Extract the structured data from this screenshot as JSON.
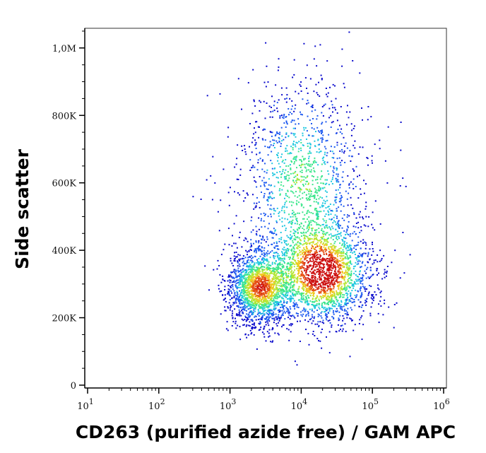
{
  "chart_data": {
    "type": "scatter",
    "style": "density dot plot (flow cytometry)",
    "title": "",
    "xlabel": "CD263 (purified azide free) / GAM APC",
    "ylabel": "Side scatter",
    "x_scale": "log",
    "xlim": [
      10,
      1000000
    ],
    "ylim": [
      0,
      1050000
    ],
    "grid": false,
    "x_ticks": [
      {
        "value": 10,
        "base": "10",
        "exp": "1"
      },
      {
        "value": 100,
        "base": "10",
        "exp": "2"
      },
      {
        "value": 1000,
        "base": "10",
        "exp": "3"
      },
      {
        "value": 10000,
        "base": "10",
        "exp": "4"
      },
      {
        "value": 100000,
        "base": "10",
        "exp": "5"
      },
      {
        "value": 1000000,
        "base": "10",
        "exp": "6"
      }
    ],
    "y_ticks": [
      {
        "value": 0,
        "label": "0"
      },
      {
        "value": 200000,
        "label": "200K"
      },
      {
        "value": 400000,
        "label": "400K"
      },
      {
        "value": 600000,
        "label": "600K"
      },
      {
        "value": 800000,
        "label": "800K"
      },
      {
        "value": 1000000,
        "label": "1,0M"
      }
    ],
    "density_colors": [
      "#0a0acc",
      "#1e5af0",
      "#20c8e0",
      "#3ce68c",
      "#b4e632",
      "#f0c81e",
      "#e65014",
      "#cc1010"
    ],
    "populations": [
      {
        "x_center": 2500,
        "y_center": 290000,
        "x_spread_log10": 0.22,
        "y_spread": 55000,
        "weight": 0.35
      },
      {
        "x_center": 20000,
        "y_center": 330000,
        "x_spread_log10": 0.35,
        "y_spread": 75000,
        "weight": 0.4
      },
      {
        "x_center": 10000,
        "y_center": 600000,
        "x_spread_log10": 0.45,
        "y_spread": 160000,
        "weight": 0.25
      }
    ]
  }
}
